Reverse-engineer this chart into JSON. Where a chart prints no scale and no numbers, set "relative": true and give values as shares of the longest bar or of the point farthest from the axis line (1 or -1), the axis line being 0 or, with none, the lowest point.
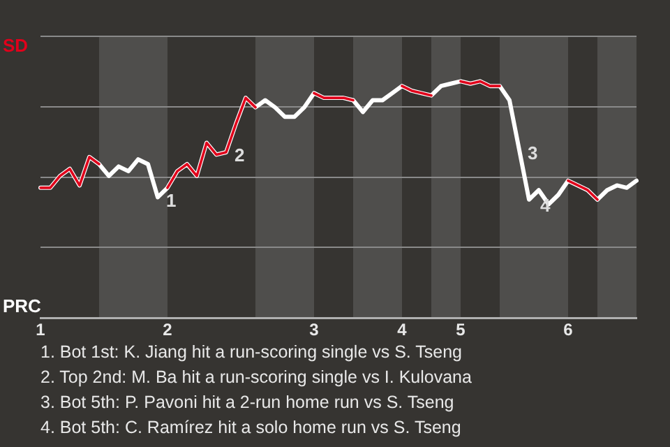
{
  "chart_data": {
    "type": "line",
    "relative": true,
    "categories": [
      "1",
      null,
      null,
      null,
      null,
      null,
      null,
      null,
      null,
      null,
      null,
      null,
      null,
      "2",
      null,
      null,
      null,
      null,
      null,
      null,
      null,
      null,
      null,
      null,
      null,
      null,
      null,
      null,
      "3",
      null,
      null,
      null,
      null,
      null,
      null,
      null,
      null,
      "4",
      null,
      null,
      null,
      null,
      null,
      "5",
      null,
      null,
      null,
      null,
      null,
      null,
      null,
      null,
      null,
      null,
      "6",
      null,
      null,
      null,
      null,
      null,
      null,
      null
    ],
    "series": [
      {
        "color": "#ffffff",
        "values": [
          0.55,
          0.55,
          0.6,
          0.63,
          0.56,
          0.68,
          0.65,
          0.6,
          0.64,
          0.62,
          0.67,
          0.65,
          0.51,
          0.55,
          0.62,
          0.65,
          0.6,
          0.74,
          0.69,
          0.7,
          0.82,
          0.93,
          0.89,
          0.92,
          0.89,
          0.85,
          0.85,
          0.89,
          0.95,
          0.93,
          0.93,
          0.93,
          0.92,
          0.87,
          0.92,
          0.92,
          0.95,
          0.98,
          0.96,
          0.95,
          0.94,
          0.98,
          0.99,
          1,
          0.99,
          1,
          0.98,
          0.98,
          0.92,
          0.71,
          0.5,
          0.54,
          0.48,
          0.52,
          0.58,
          0.56,
          0.54,
          0.5,
          0.54,
          0.56,
          0.55,
          0.58
        ]
      },
      {
        "color": "#e0001b",
        "values": [
          0.55,
          0.55,
          0.6,
          0.63,
          0.56,
          0.68,
          0.65,
          null,
          null,
          null,
          null,
          null,
          null,
          0.55,
          0.62,
          0.65,
          0.6,
          0.74,
          0.69,
          0.7,
          0.82,
          0.93,
          0.89,
          null,
          null,
          null,
          null,
          null,
          0.95,
          0.93,
          0.93,
          0.93,
          0.92,
          null,
          null,
          null,
          null,
          0.98,
          0.96,
          0.95,
          0.94,
          null,
          null,
          1,
          0.99,
          1,
          0.98,
          0.98,
          null,
          null,
          null,
          null,
          null,
          null,
          0.58,
          0.56,
          0.54,
          0.5,
          null,
          null,
          null,
          null
        ]
      }
    ],
    "annotations": [
      "SD",
      "PRC",
      "1",
      "2",
      "3",
      "4",
      "1. Bot 1st: K. Jiang hit a run-scoring single vs S. Tseng",
      "2. Top 2nd: M. Ba hit a run-scoring single vs I. Kulovana",
      "3. Bot 5th: P. Pavoni hit a 2-run home run vs S. Tseng",
      "4. Bot 5th: C. Ramírez hit a solo home run vs S. Tseng"
    ],
    "grid": "y",
    "marker": "none",
    "line_style": "solid"
  }
}
